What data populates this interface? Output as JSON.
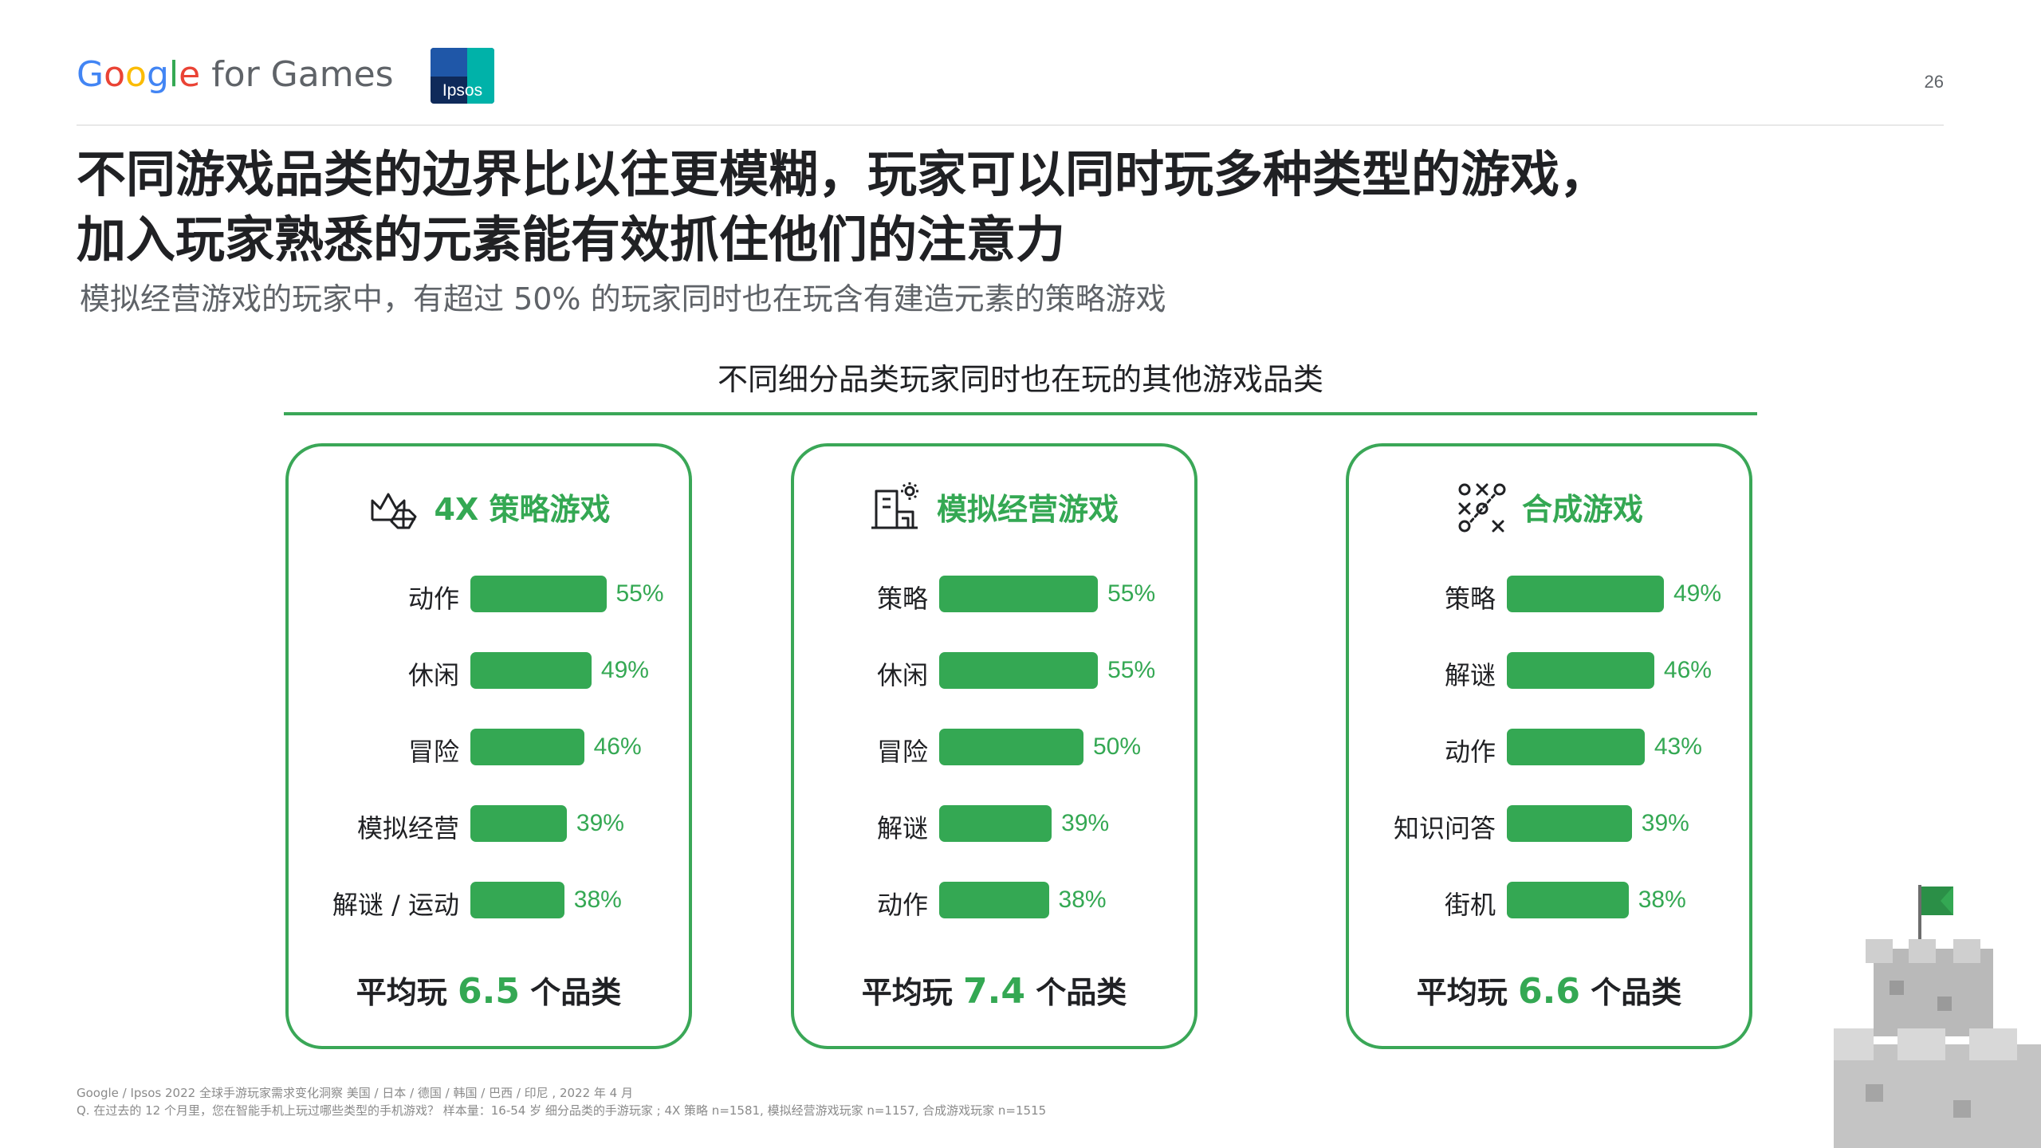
{
  "header": {
    "brand": {
      "google": [
        "G",
        "o",
        "o",
        "g",
        "l",
        "e"
      ],
      "rest": " for Games"
    },
    "partner_logo_text": "Ipsos",
    "page_number": "26"
  },
  "title_lines": [
    "不同游戏品类的边界比以往更模糊，玩家可以同时玩多种类型的游戏，",
    "加入玩家熟悉的元素能有效抓住他们的注意力"
  ],
  "subtitle": "模拟经营游戏的玩家中，有超过 50% 的玩家同时也在玩含有建造元素的策略游戏",
  "chart_heading": "不同细分品类玩家同时也在玩的其他游戏品类",
  "colors": {
    "accent": "#34a853",
    "border": "#3aa757",
    "text": "#202124",
    "muted": "#5f6368"
  },
  "chart_data": [
    {
      "type": "bar",
      "title": "4X 策略游戏",
      "icon": "strategy-4x-icon",
      "categories": [
        "动作",
        "休闲",
        "冒险",
        "模拟经营",
        "解谜 / 运动"
      ],
      "values": [
        55,
        49,
        46,
        39,
        38
      ],
      "value_labels": [
        "55%",
        "49%",
        "46%",
        "39%",
        "38%"
      ],
      "footer": {
        "prefix": "平均玩 ",
        "value": "6.5",
        "suffix": " 个品类"
      }
    },
    {
      "type": "bar",
      "title": "模拟经营游戏",
      "icon": "building-sim-icon",
      "categories": [
        "策略",
        "休闲",
        "冒险",
        "解谜",
        "动作"
      ],
      "values": [
        55,
        55,
        50,
        39,
        38
      ],
      "value_labels": [
        "55%",
        "55%",
        "50%",
        "39%",
        "38%"
      ],
      "footer": {
        "prefix": "平均玩 ",
        "value": "7.4",
        "suffix": " 个品类"
      }
    },
    {
      "type": "bar",
      "title": "合成游戏",
      "icon": "merge-game-icon",
      "categories": [
        "策略",
        "解谜",
        "动作",
        "知识问答",
        "街机"
      ],
      "values": [
        49,
        46,
        43,
        39,
        38
      ],
      "value_labels": [
        "49%",
        "46%",
        "43%",
        "39%",
        "38%"
      ],
      "footer": {
        "prefix": "平均玩 ",
        "value": "6.6",
        "suffix": " 个品类"
      }
    }
  ],
  "footnote_lines": [
    "Google / Ipsos 2022 全球手游玩家需求变化洞察 美国 / 日本 / 德国 / 韩国 / 巴西 / 印尼 , 2022 年 4 月",
    "Q. 在过去的 12 个月里，您在智能手机上玩过哪些类型的手机游戏？ 样本量：16-54 岁 细分品类的手游玩家 ; 4X 策略 n=1581, 模拟经营游戏玩家 n=1157, 合成游戏玩家 n=1515"
  ]
}
